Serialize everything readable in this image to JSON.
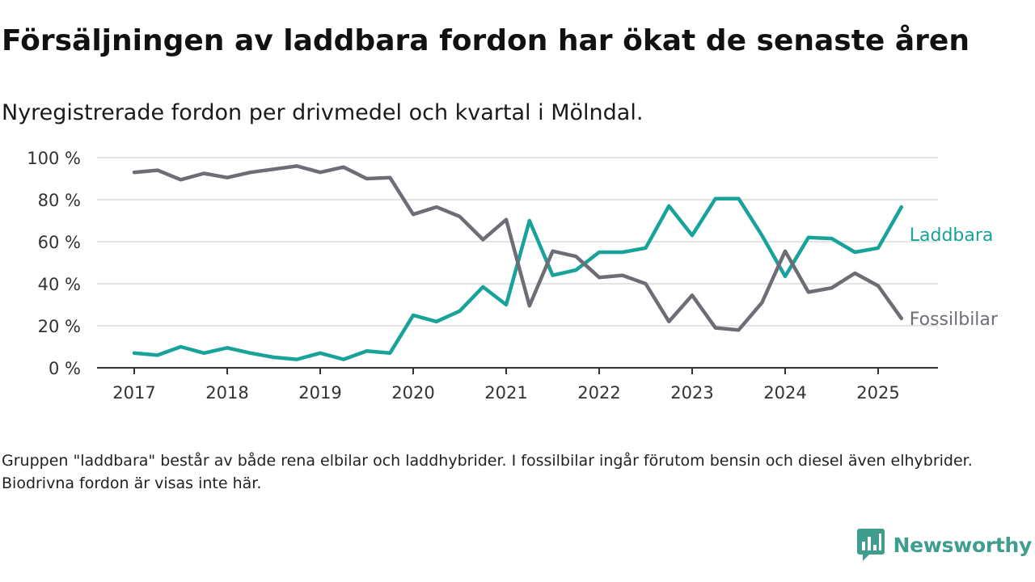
{
  "title": "Försäljningen av laddbara fordon har ökat de senaste åren",
  "subtitle": "Nyregistrerade fordon per drivmedel och kvartal i Mölndal.",
  "footnote": "Gruppen \"laddbara\" består av både rena elbilar och laddhybrider. I fossilbilar ingår förutom bensin och diesel även elhybrider. Biodrivna fordon är visas inte här.",
  "brand": {
    "name": "Newsworthy",
    "color": "#3f9d8f"
  },
  "chart_data": {
    "type": "line",
    "title": "Försäljningen av laddbara fordon har ökat de senaste åren",
    "subtitle": "Nyregistrerade fordon per drivmedel och kvartal i Mölndal.",
    "xlabel": "",
    "ylabel": "",
    "x": [
      "2017-Q1",
      "2017-Q2",
      "2017-Q3",
      "2017-Q4",
      "2018-Q1",
      "2018-Q2",
      "2018-Q3",
      "2018-Q4",
      "2019-Q1",
      "2019-Q2",
      "2019-Q3",
      "2019-Q4",
      "2020-Q1",
      "2020-Q2",
      "2020-Q3",
      "2020-Q4",
      "2021-Q1",
      "2021-Q2",
      "2021-Q3",
      "2021-Q4",
      "2022-Q1",
      "2022-Q2",
      "2022-Q3",
      "2022-Q4",
      "2023-Q1",
      "2023-Q2",
      "2023-Q3",
      "2023-Q4",
      "2024-Q1",
      "2024-Q2",
      "2024-Q3",
      "2024-Q4",
      "2025-Q1",
      "2025-Q2"
    ],
    "x_ticks": [
      "2017",
      "2018",
      "2019",
      "2020",
      "2021",
      "2022",
      "2023",
      "2024",
      "2025"
    ],
    "y_ticks": [
      "0 %",
      "20 %",
      "40 %",
      "60 %",
      "80 %",
      "100 %"
    ],
    "ylim": [
      0,
      100
    ],
    "grid": "horizontal",
    "legend": "direct labels at line ends",
    "series": [
      {
        "name": "Laddbara",
        "color": "#17a399",
        "values": [
          7,
          6,
          10,
          7,
          9.5,
          7,
          5,
          4,
          7,
          4,
          8,
          7,
          25,
          22,
          27,
          38.5,
          30,
          70,
          44,
          46.5,
          55,
          55,
          57,
          77,
          63,
          80.5,
          80.5,
          63,
          43.5,
          62,
          61.5,
          55,
          57,
          76.5
        ]
      },
      {
        "name": "Fossilbilar",
        "color": "#6e6d75",
        "values": [
          93,
          94,
          89.5,
          92.5,
          90.5,
          93,
          94.5,
          96,
          93,
          95.5,
          90,
          90.5,
          73,
          76.5,
          72,
          61,
          70.5,
          29.5,
          55.5,
          53,
          43,
          44,
          40,
          22,
          34.5,
          19,
          18,
          31,
          55.5,
          36,
          38,
          45,
          39,
          23.5
        ]
      }
    ]
  }
}
